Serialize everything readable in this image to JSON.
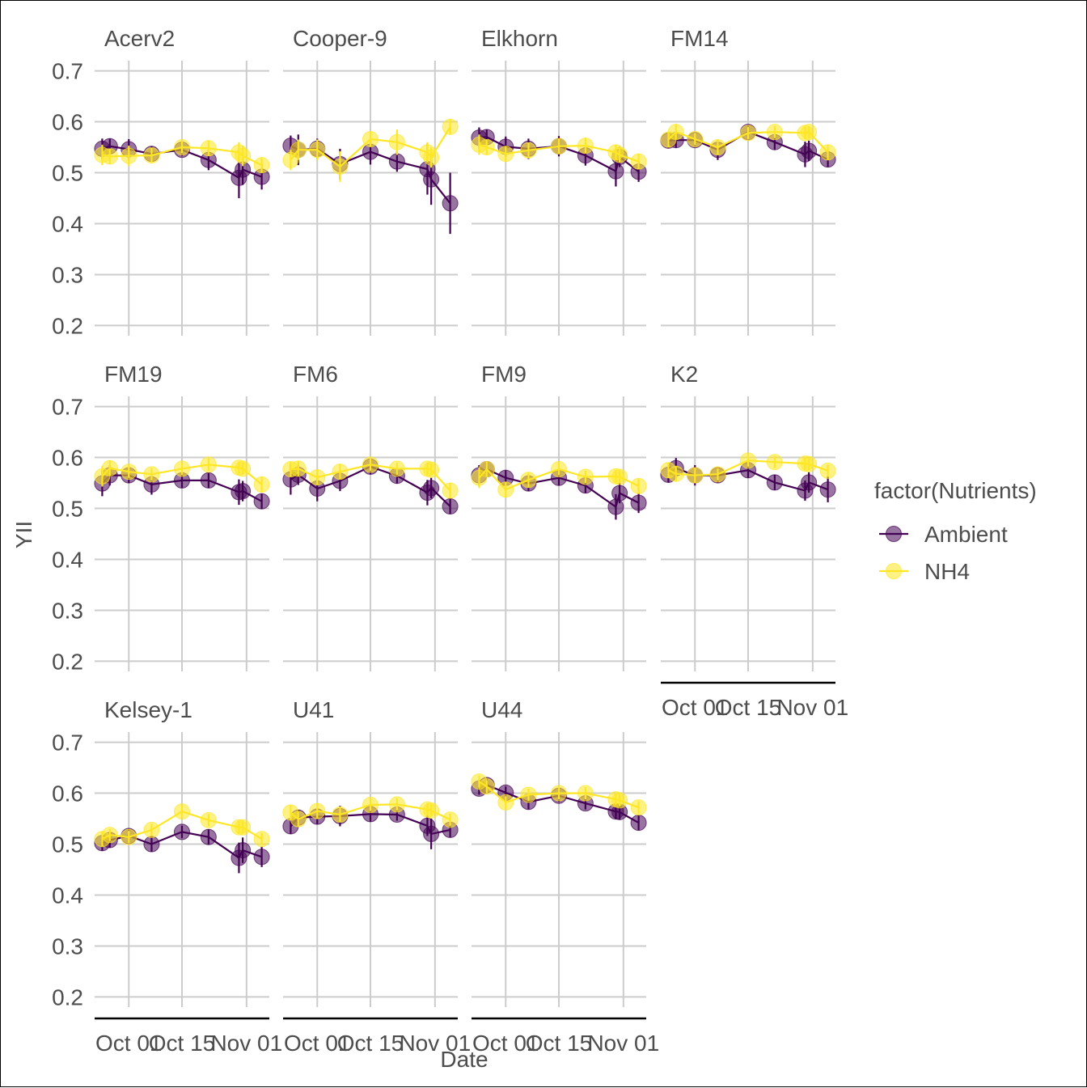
{
  "chart_data": {
    "type": "line",
    "xlabel": "Date",
    "ylabel": "YII",
    "ylim": [
      0.18,
      0.72
    ],
    "yticks": [
      0.2,
      0.3,
      0.4,
      0.5,
      0.6,
      0.7
    ],
    "ytick_labels": [
      "0.2",
      "0.3",
      "0.4",
      "0.5",
      "0.6",
      "0.7"
    ],
    "xlim": [
      "2019-09-22",
      "2019-11-07"
    ],
    "xticks": [
      "2019-10-01",
      "2019-10-15",
      "2019-11-01"
    ],
    "xtick_labels": [
      "Oct 01",
      "Oct 15",
      "Nov 01"
    ],
    "grid": true,
    "legend": {
      "title": "factor(Nutrients)",
      "placement": "right",
      "entries": [
        {
          "label": "Ambient",
          "color": "#440154"
        },
        {
          "label": "NH4",
          "color": "#FDE725"
        }
      ]
    },
    "colors": {
      "Ambient": "#440154",
      "NH4": "#FDE725"
    },
    "panels": [
      {
        "name": "Acerv2",
        "ambient": [
          [
            "2019-09-24",
            0.547,
            0.02
          ],
          [
            "2019-09-26",
            0.552,
            0.015
          ],
          [
            "2019-10-01",
            0.546,
            0.02
          ],
          [
            "2019-10-07",
            0.537,
            0.015
          ],
          [
            "2019-10-15",
            0.545,
            0.012
          ],
          [
            "2019-10-22",
            0.525,
            0.02
          ],
          [
            "2019-10-30",
            0.49,
            0.04
          ],
          [
            "2019-10-31",
            0.506,
            0.03
          ],
          [
            "2019-11-05",
            0.492,
            0.025
          ]
        ],
        "nh4": [
          [
            "2019-09-24",
            0.535,
            0.02
          ],
          [
            "2019-09-26",
            0.532,
            0.015
          ],
          [
            "2019-10-01",
            0.533,
            0.02
          ],
          [
            "2019-10-07",
            0.534,
            0.015
          ],
          [
            "2019-10-15",
            0.55,
            0.012
          ],
          [
            "2019-10-22",
            0.548,
            0.015
          ],
          [
            "2019-10-30",
            0.54,
            0.02
          ],
          [
            "2019-10-31",
            0.533,
            0.02
          ],
          [
            "2019-11-05",
            0.515,
            0.015
          ]
        ]
      },
      {
        "name": "Cooper-9",
        "ambient": [
          [
            "2019-09-24",
            0.553,
            0.02
          ],
          [
            "2019-09-26",
            0.545,
            0.03
          ],
          [
            "2019-10-01",
            0.547,
            0.02
          ],
          [
            "2019-10-07",
            0.517,
            0.03
          ],
          [
            "2019-10-15",
            0.541,
            0.025
          ],
          [
            "2019-10-22",
            0.522,
            0.02
          ],
          [
            "2019-10-30",
            0.507,
            0.05
          ],
          [
            "2019-10-31",
            0.487,
            0.05
          ],
          [
            "2019-11-05",
            0.44,
            0.06
          ]
        ],
        "nh4": [
          [
            "2019-09-24",
            0.525,
            0.02
          ],
          [
            "2019-09-26",
            0.545,
            0.02
          ],
          [
            "2019-10-01",
            0.545,
            0.02
          ],
          [
            "2019-10-07",
            0.512,
            0.03
          ],
          [
            "2019-10-15",
            0.566,
            0.015
          ],
          [
            "2019-10-22",
            0.56,
            0.025
          ],
          [
            "2019-10-30",
            0.54,
            0.02
          ],
          [
            "2019-10-31",
            0.53,
            0.02
          ],
          [
            "2019-11-05",
            0.59,
            0.015
          ]
        ]
      },
      {
        "name": "Elkhorn",
        "ambient": [
          [
            "2019-09-24",
            0.569,
            0.02
          ],
          [
            "2019-09-26",
            0.57,
            0.015
          ],
          [
            "2019-10-01",
            0.551,
            0.02
          ],
          [
            "2019-10-07",
            0.547,
            0.02
          ],
          [
            "2019-10-15",
            0.552,
            0.02
          ],
          [
            "2019-10-22",
            0.534,
            0.02
          ],
          [
            "2019-10-30",
            0.503,
            0.03
          ],
          [
            "2019-10-31",
            0.531,
            0.02
          ],
          [
            "2019-11-05",
            0.502,
            0.02
          ]
        ],
        "nh4": [
          [
            "2019-09-24",
            0.555,
            0.02
          ],
          [
            "2019-09-26",
            0.55,
            0.015
          ],
          [
            "2019-10-01",
            0.537,
            0.015
          ],
          [
            "2019-10-07",
            0.544,
            0.015
          ],
          [
            "2019-10-15",
            0.552,
            0.015
          ],
          [
            "2019-10-22",
            0.553,
            0.015
          ],
          [
            "2019-10-30",
            0.54,
            0.015
          ],
          [
            "2019-10-31",
            0.535,
            0.015
          ],
          [
            "2019-11-05",
            0.522,
            0.015
          ]
        ]
      },
      {
        "name": "FM14",
        "ambient": [
          [
            "2019-09-24",
            0.563,
            0.015
          ],
          [
            "2019-09-26",
            0.564,
            0.015
          ],
          [
            "2019-10-01",
            0.564,
            0.012
          ],
          [
            "2019-10-07",
            0.545,
            0.02
          ],
          [
            "2019-10-15",
            0.58,
            0.012
          ],
          [
            "2019-10-22",
            0.56,
            0.015
          ],
          [
            "2019-10-30",
            0.536,
            0.025
          ],
          [
            "2019-10-31",
            0.543,
            0.02
          ],
          [
            "2019-11-05",
            0.526,
            0.015
          ]
        ],
        "nh4": [
          [
            "2019-09-24",
            0.565,
            0.015
          ],
          [
            "2019-09-26",
            0.58,
            0.015
          ],
          [
            "2019-10-01",
            0.566,
            0.012
          ],
          [
            "2019-10-07",
            0.55,
            0.015
          ],
          [
            "2019-10-15",
            0.578,
            0.012
          ],
          [
            "2019-10-22",
            0.58,
            0.012
          ],
          [
            "2019-10-30",
            0.578,
            0.012
          ],
          [
            "2019-10-31",
            0.58,
            0.012
          ],
          [
            "2019-11-05",
            0.54,
            0.015
          ]
        ]
      },
      {
        "name": "FM19",
        "ambient": [
          [
            "2019-09-24",
            0.549,
            0.025
          ],
          [
            "2019-09-26",
            0.565,
            0.02
          ],
          [
            "2019-10-01",
            0.565,
            0.015
          ],
          [
            "2019-10-07",
            0.547,
            0.02
          ],
          [
            "2019-10-15",
            0.555,
            0.015
          ],
          [
            "2019-10-22",
            0.555,
            0.015
          ],
          [
            "2019-10-30",
            0.532,
            0.025
          ],
          [
            "2019-10-31",
            0.534,
            0.02
          ],
          [
            "2019-11-05",
            0.514,
            0.015
          ]
        ],
        "nh4": [
          [
            "2019-09-24",
            0.563,
            0.02
          ],
          [
            "2019-09-26",
            0.579,
            0.015
          ],
          [
            "2019-10-01",
            0.572,
            0.012
          ],
          [
            "2019-10-07",
            0.567,
            0.012
          ],
          [
            "2019-10-15",
            0.578,
            0.012
          ],
          [
            "2019-10-22",
            0.586,
            0.012
          ],
          [
            "2019-10-30",
            0.58,
            0.012
          ],
          [
            "2019-10-31",
            0.578,
            0.012
          ],
          [
            "2019-11-05",
            0.547,
            0.015
          ]
        ]
      },
      {
        "name": "FM6",
        "ambient": [
          [
            "2019-09-24",
            0.557,
            0.03
          ],
          [
            "2019-09-26",
            0.566,
            0.02
          ],
          [
            "2019-10-01",
            0.539,
            0.025
          ],
          [
            "2019-10-07",
            0.554,
            0.02
          ],
          [
            "2019-10-15",
            0.582,
            0.015
          ],
          [
            "2019-10-22",
            0.564,
            0.015
          ],
          [
            "2019-10-30",
            0.531,
            0.025
          ],
          [
            "2019-10-31",
            0.54,
            0.02
          ],
          [
            "2019-11-05",
            0.504,
            0.015
          ]
        ],
        "nh4": [
          [
            "2019-09-24",
            0.577,
            0.015
          ],
          [
            "2019-09-26",
            0.578,
            0.015
          ],
          [
            "2019-10-01",
            0.561,
            0.015
          ],
          [
            "2019-10-07",
            0.572,
            0.015
          ],
          [
            "2019-10-15",
            0.586,
            0.012
          ],
          [
            "2019-10-22",
            0.578,
            0.012
          ],
          [
            "2019-10-30",
            0.578,
            0.012
          ],
          [
            "2019-10-31",
            0.576,
            0.012
          ],
          [
            "2019-11-05",
            0.535,
            0.015
          ]
        ]
      },
      {
        "name": "FM9",
        "ambient": [
          [
            "2019-09-24",
            0.565,
            0.02
          ],
          [
            "2019-09-26",
            0.577,
            0.015
          ],
          [
            "2019-10-01",
            0.56,
            0.015
          ],
          [
            "2019-10-07",
            0.549,
            0.015
          ],
          [
            "2019-10-15",
            0.56,
            0.015
          ],
          [
            "2019-10-22",
            0.545,
            0.015
          ],
          [
            "2019-10-30",
            0.503,
            0.025
          ],
          [
            "2019-10-31",
            0.53,
            0.02
          ],
          [
            "2019-11-05",
            0.511,
            0.02
          ]
        ],
        "nh4": [
          [
            "2019-09-24",
            0.56,
            0.02
          ],
          [
            "2019-09-26",
            0.577,
            0.015
          ],
          [
            "2019-10-01",
            0.537,
            0.015
          ],
          [
            "2019-10-07",
            0.556,
            0.015
          ],
          [
            "2019-10-15",
            0.577,
            0.012
          ],
          [
            "2019-10-22",
            0.562,
            0.012
          ],
          [
            "2019-10-30",
            0.563,
            0.012
          ],
          [
            "2019-10-31",
            0.562,
            0.012
          ],
          [
            "2019-11-05",
            0.544,
            0.015
          ]
        ]
      },
      {
        "name": "K2",
        "ambient": [
          [
            "2019-09-24",
            0.566,
            0.015
          ],
          [
            "2019-09-26",
            0.579,
            0.02
          ],
          [
            "2019-10-01",
            0.565,
            0.02
          ],
          [
            "2019-10-07",
            0.565,
            0.015
          ],
          [
            "2019-10-15",
            0.575,
            0.015
          ],
          [
            "2019-10-22",
            0.551,
            0.015
          ],
          [
            "2019-10-30",
            0.535,
            0.02
          ],
          [
            "2019-10-31",
            0.551,
            0.02
          ],
          [
            "2019-11-05",
            0.537,
            0.025
          ]
        ],
        "nh4": [
          [
            "2019-09-24",
            0.575,
            0.015
          ],
          [
            "2019-09-26",
            0.568,
            0.015
          ],
          [
            "2019-10-01",
            0.565,
            0.015
          ],
          [
            "2019-10-07",
            0.567,
            0.012
          ],
          [
            "2019-10-15",
            0.594,
            0.012
          ],
          [
            "2019-10-22",
            0.591,
            0.012
          ],
          [
            "2019-10-30",
            0.588,
            0.012
          ],
          [
            "2019-10-31",
            0.587,
            0.012
          ],
          [
            "2019-11-05",
            0.574,
            0.012
          ]
        ]
      },
      {
        "name": "Kelsey-1",
        "ambient": [
          [
            "2019-09-24",
            0.502,
            0.015
          ],
          [
            "2019-09-26",
            0.508,
            0.015
          ],
          [
            "2019-10-01",
            0.516,
            0.012
          ],
          [
            "2019-10-07",
            0.5,
            0.015
          ],
          [
            "2019-10-15",
            0.524,
            0.012
          ],
          [
            "2019-10-22",
            0.514,
            0.015
          ],
          [
            "2019-10-30",
            0.473,
            0.03
          ],
          [
            "2019-10-31",
            0.488,
            0.025
          ],
          [
            "2019-11-05",
            0.475,
            0.02
          ]
        ],
        "nh4": [
          [
            "2019-09-24",
            0.51,
            0.015
          ],
          [
            "2019-09-26",
            0.518,
            0.012
          ],
          [
            "2019-10-01",
            0.514,
            0.012
          ],
          [
            "2019-10-07",
            0.528,
            0.012
          ],
          [
            "2019-10-15",
            0.564,
            0.012
          ],
          [
            "2019-10-22",
            0.547,
            0.012
          ],
          [
            "2019-10-30",
            0.533,
            0.012
          ],
          [
            "2019-10-31",
            0.533,
            0.012
          ],
          [
            "2019-11-05",
            0.51,
            0.012
          ]
        ]
      },
      {
        "name": "U41",
        "ambient": [
          [
            "2019-09-24",
            0.535,
            0.015
          ],
          [
            "2019-09-26",
            0.552,
            0.015
          ],
          [
            "2019-10-01",
            0.554,
            0.015
          ],
          [
            "2019-10-07",
            0.555,
            0.02
          ],
          [
            "2019-10-15",
            0.559,
            0.015
          ],
          [
            "2019-10-22",
            0.558,
            0.012
          ],
          [
            "2019-10-30",
            0.536,
            0.02
          ],
          [
            "2019-10-31",
            0.52,
            0.03
          ],
          [
            "2019-11-05",
            0.528,
            0.015
          ]
        ],
        "nh4": [
          [
            "2019-09-24",
            0.562,
            0.015
          ],
          [
            "2019-09-26",
            0.549,
            0.015
          ],
          [
            "2019-10-01",
            0.565,
            0.015
          ],
          [
            "2019-10-07",
            0.558,
            0.015
          ],
          [
            "2019-10-15",
            0.577,
            0.012
          ],
          [
            "2019-10-22",
            0.578,
            0.012
          ],
          [
            "2019-10-30",
            0.568,
            0.012
          ],
          [
            "2019-10-31",
            0.566,
            0.012
          ],
          [
            "2019-11-05",
            0.548,
            0.012
          ]
        ]
      },
      {
        "name": "U44",
        "ambient": [
          [
            "2019-09-24",
            0.609,
            0.012
          ],
          [
            "2019-09-26",
            0.616,
            0.012
          ],
          [
            "2019-10-01",
            0.601,
            0.012
          ],
          [
            "2019-10-07",
            0.583,
            0.015
          ],
          [
            "2019-10-15",
            0.595,
            0.012
          ],
          [
            "2019-10-22",
            0.58,
            0.012
          ],
          [
            "2019-10-30",
            0.564,
            0.015
          ],
          [
            "2019-10-31",
            0.563,
            0.015
          ],
          [
            "2019-11-05",
            0.542,
            0.015
          ]
        ],
        "nh4": [
          [
            "2019-09-24",
            0.623,
            0.012
          ],
          [
            "2019-09-26",
            0.613,
            0.012
          ],
          [
            "2019-10-01",
            0.582,
            0.012
          ],
          [
            "2019-10-07",
            0.597,
            0.012
          ],
          [
            "2019-10-15",
            0.6,
            0.012
          ],
          [
            "2019-10-22",
            0.6,
            0.012
          ],
          [
            "2019-10-30",
            0.588,
            0.012
          ],
          [
            "2019-10-31",
            0.586,
            0.012
          ],
          [
            "2019-11-05",
            0.572,
            0.012
          ]
        ]
      }
    ]
  }
}
